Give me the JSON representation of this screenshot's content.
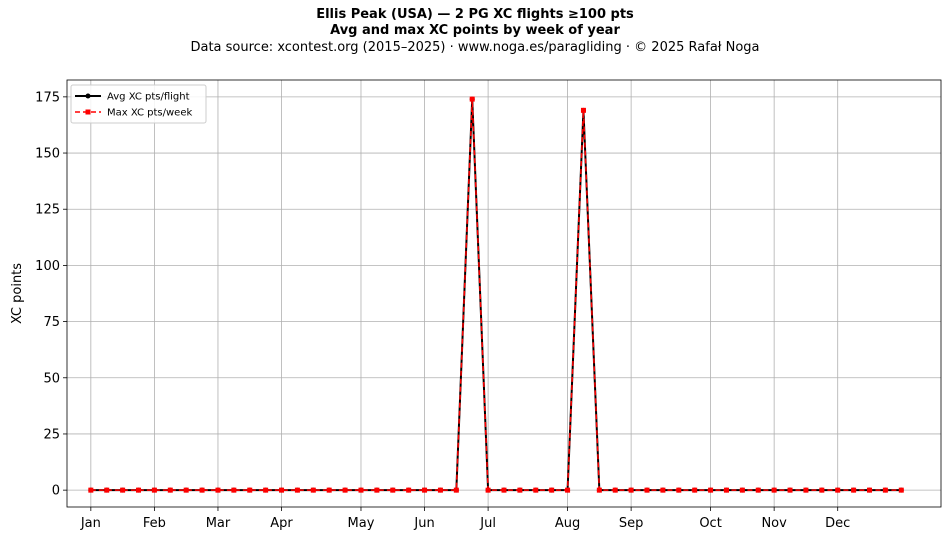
{
  "chart_data": {
    "type": "line",
    "title": "Ellis Peak (USA)  —  2 PG XC flights ≥100 pts",
    "subtitle": "Avg and max XC points by week of year",
    "source_note": "Data source: xcontest.org (2015–2025)  ·  www.noga.es/paragliding  ·  © 2025 Rafał Noga",
    "xlabel": "",
    "ylabel": "XC points",
    "ylim": [
      -7.5,
      182.5
    ],
    "xlim": [
      -1.5,
      53.5
    ],
    "y_ticks": [
      0,
      25,
      50,
      75,
      100,
      125,
      150,
      175
    ],
    "month_ticks": [
      {
        "label": "Jan",
        "week": 0
      },
      {
        "label": "Feb",
        "week": 4
      },
      {
        "label": "Mar",
        "week": 8
      },
      {
        "label": "Apr",
        "week": 12
      },
      {
        "label": "May",
        "week": 17
      },
      {
        "label": "Jun",
        "week": 21
      },
      {
        "label": "Jul",
        "week": 25
      },
      {
        "label": "Aug",
        "week": 30
      },
      {
        "label": "Sep",
        "week": 34
      },
      {
        "label": "Oct",
        "week": 39
      },
      {
        "label": "Nov",
        "week": 43
      },
      {
        "label": "Dec",
        "week": 47
      }
    ],
    "x": [
      0,
      1,
      2,
      3,
      4,
      5,
      6,
      7,
      8,
      9,
      10,
      11,
      12,
      13,
      14,
      15,
      16,
      17,
      18,
      19,
      20,
      21,
      22,
      23,
      24,
      25,
      26,
      27,
      28,
      29,
      30,
      31,
      32,
      33,
      34,
      35,
      36,
      37,
      38,
      39,
      40,
      41,
      42,
      43,
      44,
      45,
      46,
      47,
      48,
      49,
      50,
      51
    ],
    "series": [
      {
        "name": "Avg XC pts/flight",
        "color": "#000000",
        "style": "solid",
        "marker": "circle",
        "values": [
          0,
          0,
          0,
          0,
          0,
          0,
          0,
          0,
          0,
          0,
          0,
          0,
          0,
          0,
          0,
          0,
          0,
          0,
          0,
          0,
          0,
          0,
          0,
          0,
          174,
          0,
          0,
          0,
          0,
          0,
          0,
          169,
          0,
          0,
          0,
          0,
          0,
          0,
          0,
          0,
          0,
          0,
          0,
          0,
          0,
          0,
          0,
          0,
          0,
          0,
          0,
          0
        ]
      },
      {
        "name": "Max XC pts/week",
        "color": "#ff0000",
        "style": "dashed",
        "marker": "square",
        "values": [
          0,
          0,
          0,
          0,
          0,
          0,
          0,
          0,
          0,
          0,
          0,
          0,
          0,
          0,
          0,
          0,
          0,
          0,
          0,
          0,
          0,
          0,
          0,
          0,
          174,
          0,
          0,
          0,
          0,
          0,
          0,
          169,
          0,
          0,
          0,
          0,
          0,
          0,
          0,
          0,
          0,
          0,
          0,
          0,
          0,
          0,
          0,
          0,
          0,
          0,
          0,
          0
        ]
      }
    ],
    "grid": true,
    "legend_position": "top-left"
  }
}
